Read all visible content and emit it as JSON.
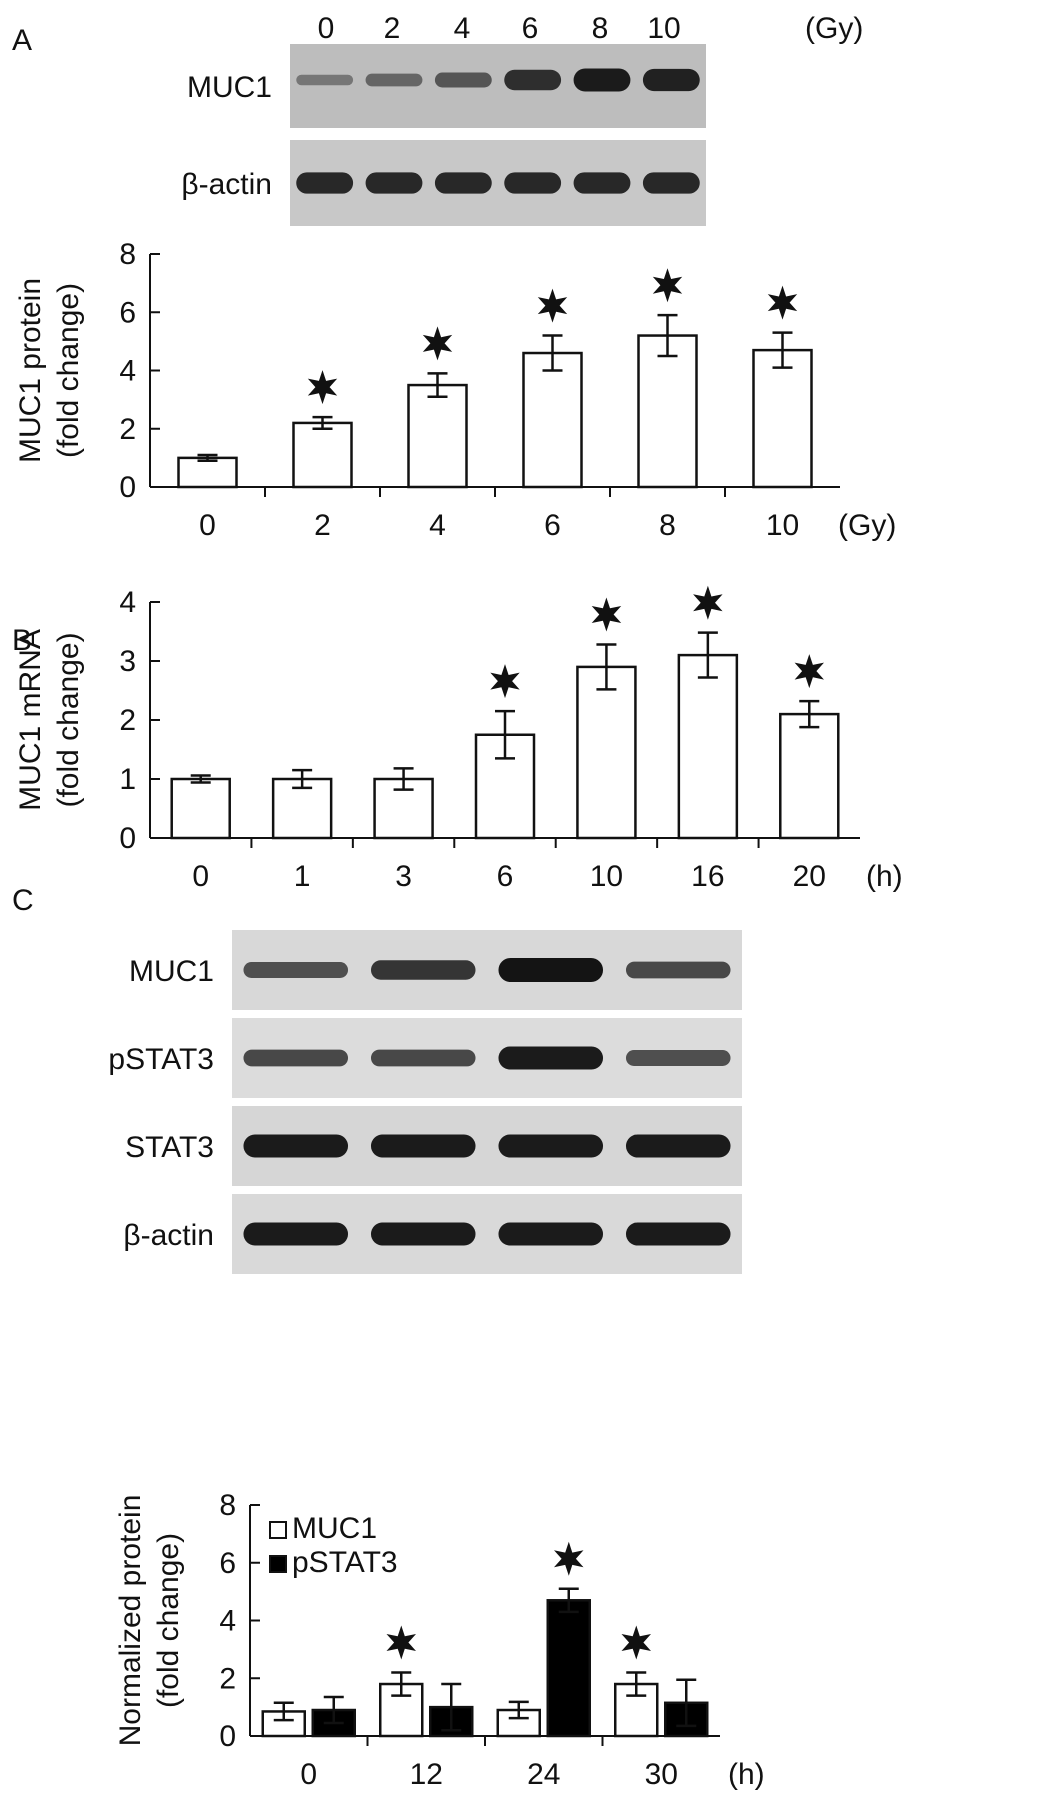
{
  "panels": {
    "A": {
      "letter": "A",
      "blot": {
        "lane_labels": [
          "0",
          "2",
          "4",
          "6",
          "8",
          "10"
        ],
        "unit": "(Gy)",
        "rows": [
          {
            "label": "MUC1",
            "intensity": [
              0.25,
              0.38,
              0.5,
              0.8,
              0.95,
              0.9
            ]
          },
          {
            "label": "β-actin",
            "intensity": [
              0.85,
              0.85,
              0.85,
              0.85,
              0.85,
              0.85
            ]
          }
        ]
      }
    },
    "B": {
      "letter": "B"
    },
    "C": {
      "letter": "C",
      "blot": {
        "rows": [
          {
            "label": "MUC1",
            "intensity": [
              0.55,
              0.75,
              1.0,
              0.6
            ]
          },
          {
            "label": "pSTAT3",
            "intensity": [
              0.6,
              0.6,
              0.95,
              0.55
            ]
          },
          {
            "label": "STAT3",
            "intensity": [
              0.95,
              0.95,
              0.95,
              0.95
            ]
          },
          {
            "label": "β-actin",
            "intensity": [
              0.95,
              0.95,
              0.95,
              0.95
            ]
          }
        ]
      }
    }
  },
  "chart_data": [
    {
      "type": "bar",
      "panel": "A",
      "categories": [
        "0",
        "2",
        "4",
        "6",
        "8",
        "10"
      ],
      "xunit": "(Gy)",
      "ylabel": [
        "MUC1 protein",
        "(fold change)"
      ],
      "ylim": [
        0,
        8
      ],
      "yticks": [
        "0",
        "2",
        "4",
        "6",
        "8"
      ],
      "series": [
        {
          "values": [
            1.0,
            2.2,
            3.5,
            4.6,
            5.2,
            4.7
          ],
          "errors": [
            0.1,
            0.2,
            0.4,
            0.6,
            0.7,
            0.6
          ],
          "significant": [
            false,
            true,
            true,
            true,
            true,
            true
          ],
          "fill": "#ffffff"
        }
      ]
    },
    {
      "type": "bar",
      "panel": "B",
      "categories": [
        "0",
        "1",
        "3",
        "6",
        "10",
        "16",
        "20"
      ],
      "xunit": "(h)",
      "ylabel": [
        "MUC1 mRNA",
        "(fold change)"
      ],
      "ylim": [
        0,
        4
      ],
      "yticks": [
        "0",
        "1",
        "2",
        "3",
        "4"
      ],
      "series": [
        {
          "values": [
            1.0,
            1.0,
            1.0,
            1.75,
            2.9,
            3.1,
            2.1
          ],
          "errors": [
            0.06,
            0.15,
            0.18,
            0.4,
            0.38,
            0.38,
            0.22
          ],
          "significant": [
            false,
            false,
            false,
            true,
            true,
            true,
            true
          ],
          "fill": "#ffffff"
        }
      ]
    },
    {
      "type": "bar",
      "panel": "C",
      "categories": [
        "0",
        "12",
        "24",
        "30"
      ],
      "xunit": "(h)",
      "ylabel": [
        "Normalized protein",
        "(fold change)"
      ],
      "ylim": [
        0,
        8
      ],
      "yticks": [
        "0",
        "2",
        "4",
        "6",
        "8"
      ],
      "series": [
        {
          "name": "MUC1",
          "values": [
            0.85,
            1.8,
            0.9,
            1.8
          ],
          "errors": [
            0.3,
            0.4,
            0.28,
            0.4
          ],
          "significant": [
            false,
            true,
            false,
            true
          ],
          "fill": "#ffffff"
        },
        {
          "name": "pSTAT3",
          "values": [
            0.9,
            1.0,
            4.7,
            1.15
          ],
          "errors": [
            0.45,
            0.8,
            0.4,
            0.8
          ],
          "significant": [
            false,
            false,
            true,
            false
          ],
          "fill": "#000000"
        }
      ],
      "legend": "top-left"
    }
  ]
}
